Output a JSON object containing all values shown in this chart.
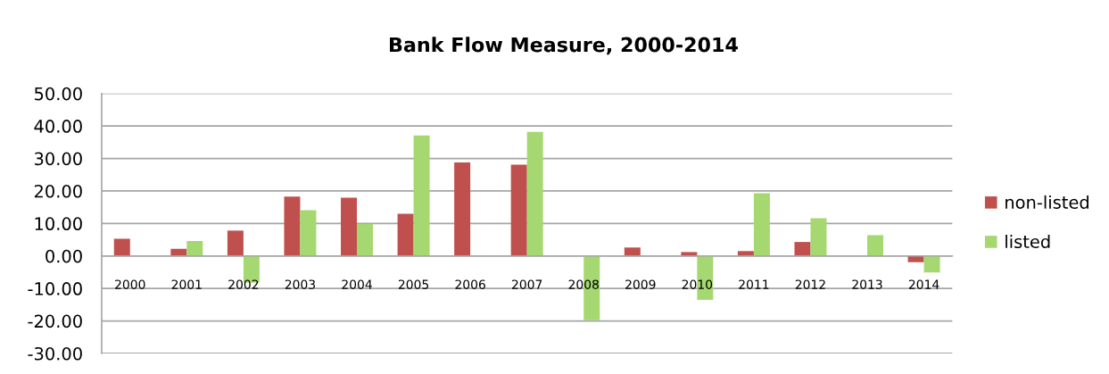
{
  "chart_data": {
    "type": "bar",
    "title": "Bank Flow Measure, 2000-2014",
    "categories": [
      "2000",
      "2001",
      "2002",
      "2003",
      "2004",
      "2005",
      "2006",
      "2007",
      "2008",
      "2009",
      "2010",
      "2011",
      "2012",
      "2013",
      "2014"
    ],
    "series": [
      {
        "name": "non-listed",
        "color": "#c0504d",
        "values": [
          5.3,
          2.2,
          7.8,
          18.3,
          17.9,
          13.0,
          28.8,
          28.1,
          null,
          2.6,
          1.2,
          1.5,
          4.3,
          null,
          -1.9
        ]
      },
      {
        "name": "listed",
        "color": "#a5d870",
        "values": [
          null,
          4.6,
          -8.2,
          14.1,
          9.8,
          37.1,
          null,
          38.2,
          -19.8,
          null,
          -13.5,
          19.3,
          11.6,
          6.4,
          -5.1
        ]
      }
    ],
    "ylim": [
      -30,
      50
    ],
    "yticks": [
      {
        "value": -30,
        "label": "-30.00"
      },
      {
        "value": -20,
        "label": "-20.00"
      },
      {
        "value": -10,
        "label": "-10.00"
      },
      {
        "value": 0,
        "label": "0.00"
      },
      {
        "value": 10,
        "label": "10.00"
      },
      {
        "value": 20,
        "label": "20.00"
      },
      {
        "value": 30,
        "label": "30.00"
      },
      {
        "value": 40,
        "label": "40.00"
      },
      {
        "value": 50,
        "label": "50.00"
      }
    ],
    "grid": "y",
    "legend": "right"
  }
}
